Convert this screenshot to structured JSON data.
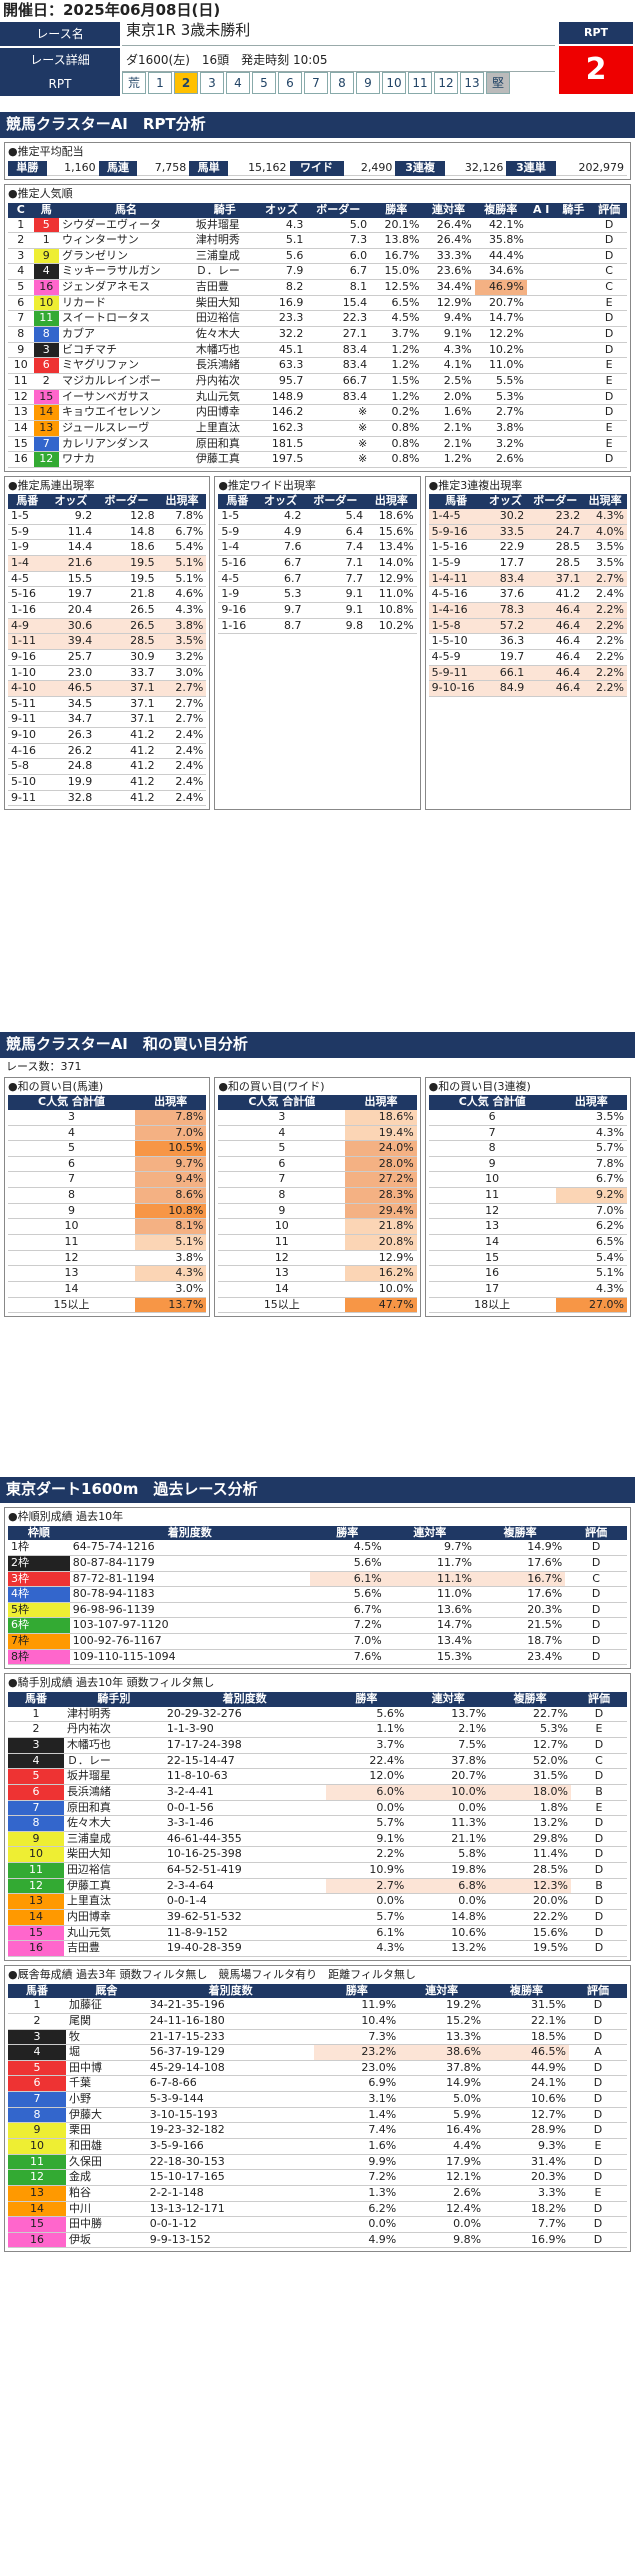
{
  "header": {
    "date_label": "開催日：2025年06月08日(日)"
  },
  "race": {
    "name_label": "レース名",
    "name": "東京1R 3歳未勝利",
    "detail_label": "レース詳細",
    "detail": "ダ1600(左)　16頭　発走時刻 10:05",
    "rpt_label": "RPT",
    "rpt_head": "RPT",
    "rpt_value": "2",
    "rpt_cells": [
      "荒",
      "1",
      "2",
      "3",
      "4",
      "5",
      "6",
      "7",
      "8",
      "9",
      "10",
      "11",
      "12",
      "13",
      "堅"
    ]
  },
  "section1": {
    "title": "競馬クラスターAI　RPT分析"
  },
  "payout": {
    "title": "●推定平均配当",
    "items": [
      [
        "単勝",
        "1,160"
      ],
      [
        "馬連",
        "7,758"
      ],
      [
        "馬単",
        "15,162"
      ],
      [
        "ワイド",
        "2,490"
      ],
      [
        "3連複",
        "32,126"
      ],
      [
        "3連単",
        "202,979"
      ]
    ]
  },
  "popularity": {
    "title": "●推定人気順",
    "headers": [
      "C",
      "馬",
      "馬名",
      "騎手",
      "オッズ",
      "ボーダー",
      "勝率",
      "連対率",
      "複勝率",
      "A I",
      "騎手",
      "評価"
    ],
    "rows": [
      [
        "1",
        "5",
        "シウダーエヴィータ",
        "坂井瑠星",
        "4.3",
        "5.0",
        "20.1%",
        "26.4%",
        "42.1%",
        "",
        "",
        "D"
      ],
      [
        "2",
        "1",
        "ウィンターサン",
        "津村明秀",
        "5.1",
        "7.3",
        "13.8%",
        "26.4%",
        "35.8%",
        "",
        "",
        "D"
      ],
      [
        "3",
        "9",
        "グランゼリン",
        "三浦皇成",
        "5.6",
        "6.0",
        "16.7%",
        "33.3%",
        "44.4%",
        "",
        "",
        "D"
      ],
      [
        "4",
        "4",
        "ミッキーラサルガン",
        "Ｄ．レー",
        "7.9",
        "6.7",
        "15.0%",
        "23.6%",
        "34.6%",
        "",
        "",
        "C"
      ],
      [
        "5",
        "16",
        "ジェンダアネモス",
        "吉田豊",
        "8.2",
        "8.1",
        "12.5%",
        "34.4%",
        "46.9%",
        "",
        "",
        "C"
      ],
      [
        "6",
        "10",
        "リカード",
        "柴田大知",
        "16.9",
        "15.4",
        "6.5%",
        "12.9%",
        "20.7%",
        "",
        "",
        "E"
      ],
      [
        "7",
        "11",
        "スイートロータス",
        "田辺裕信",
        "23.3",
        "22.3",
        "4.5%",
        "9.4%",
        "14.7%",
        "",
        "",
        "D"
      ],
      [
        "8",
        "8",
        "カブア",
        "佐々木大",
        "32.2",
        "27.1",
        "3.7%",
        "9.1%",
        "12.2%",
        "",
        "",
        "D"
      ],
      [
        "9",
        "3",
        "ビコチマチ",
        "木幡巧也",
        "45.1",
        "83.4",
        "1.2%",
        "4.3%",
        "10.2%",
        "",
        "",
        "D"
      ],
      [
        "10",
        "6",
        "ミヤグリファン",
        "長浜鴻緒",
        "63.3",
        "83.4",
        "1.2%",
        "4.1%",
        "11.0%",
        "",
        "",
        "E"
      ],
      [
        "11",
        "2",
        "マジカルレインボー",
        "丹内祐次",
        "95.7",
        "66.7",
        "1.5%",
        "2.5%",
        "5.5%",
        "",
        "",
        "E"
      ],
      [
        "12",
        "15",
        "イーサンベガサス",
        "丸山元気",
        "148.9",
        "83.4",
        "1.2%",
        "2.0%",
        "5.3%",
        "",
        "",
        "D"
      ],
      [
        "13",
        "14",
        "キョウエイセレソン",
        "内田博幸",
        "146.2",
        "※",
        "0.2%",
        "1.6%",
        "2.7%",
        "",
        "",
        "D"
      ],
      [
        "14",
        "13",
        "ジュールスレーヴ",
        "上里直汰",
        "162.3",
        "※",
        "0.8%",
        "2.1%",
        "3.8%",
        "",
        "",
        "E"
      ],
      [
        "15",
        "7",
        "カレリアンダンス",
        "原田和真",
        "181.5",
        "※",
        "0.8%",
        "2.1%",
        "3.2%",
        "",
        "",
        "E"
      ],
      [
        "16",
        "12",
        "ワナカ",
        "伊藤工真",
        "197.5",
        "※",
        "0.8%",
        "1.2%",
        "2.6%",
        "",
        "",
        "D"
      ]
    ]
  },
  "umaren": {
    "title": "●推定馬連出現率",
    "headers": [
      "馬番",
      "オッズ",
      "ボーダー",
      "出現率"
    ],
    "rows": [
      [
        "1-5",
        "9.2",
        "12.8",
        "7.8%"
      ],
      [
        "5-9",
        "11.4",
        "14.8",
        "6.7%"
      ],
      [
        "1-9",
        "14.4",
        "18.6",
        "5.4%"
      ],
      [
        "1-4",
        "21.6",
        "19.5",
        "5.1%"
      ],
      [
        "4-5",
        "15.5",
        "19.5",
        "5.1%"
      ],
      [
        "5-16",
        "19.7",
        "21.8",
        "4.6%"
      ],
      [
        "1-16",
        "20.4",
        "26.5",
        "4.3%"
      ],
      [
        "4-9",
        "30.6",
        "26.5",
        "3.8%"
      ],
      [
        "1-11",
        "39.4",
        "28.5",
        "3.5%"
      ],
      [
        "9-16",
        "25.7",
        "30.9",
        "3.2%"
      ],
      [
        "1-10",
        "23.0",
        "33.7",
        "3.0%"
      ],
      [
        "4-10",
        "46.5",
        "37.1",
        "2.7%"
      ],
      [
        "5-11",
        "34.5",
        "37.1",
        "2.7%"
      ],
      [
        "9-11",
        "34.7",
        "37.1",
        "2.7%"
      ],
      [
        "9-10",
        "26.3",
        "41.2",
        "2.4%"
      ],
      [
        "4-16",
        "26.2",
        "41.2",
        "2.4%"
      ],
      [
        "5-8",
        "24.8",
        "41.2",
        "2.4%"
      ],
      [
        "5-10",
        "19.9",
        "41.2",
        "2.4%"
      ],
      [
        "9-11",
        "32.8",
        "41.2",
        "2.4%"
      ]
    ]
  },
  "wide": {
    "title": "●推定ワイド出現率",
    "headers": [
      "馬番",
      "オッズ",
      "ボーダー",
      "出現率"
    ],
    "rows": [
      [
        "1-5",
        "4.2",
        "5.4",
        "18.6%"
      ],
      [
        "5-9",
        "4.9",
        "6.4",
        "15.6%"
      ],
      [
        "1-4",
        "7.6",
        "7.4",
        "13.4%"
      ],
      [
        "5-16",
        "6.7",
        "7.1",
        "14.0%"
      ],
      [
        "4-5",
        "6.7",
        "7.7",
        "12.9%"
      ],
      [
        "1-9",
        "5.3",
        "9.1",
        "11.0%"
      ],
      [
        "9-16",
        "9.7",
        "9.1",
        "10.8%"
      ],
      [
        "1-16",
        "8.7",
        "9.8",
        "10.2%"
      ]
    ]
  },
  "sanrenpuku": {
    "title": "●推定3連複出現率",
    "headers": [
      "馬番",
      "オッズ",
      "ボーダー",
      "出現率"
    ],
    "rows": [
      [
        "1-4-5",
        "30.2",
        "23.2",
        "4.3%"
      ],
      [
        "5-9-16",
        "33.5",
        "24.7",
        "4.0%"
      ],
      [
        "1-5-16",
        "22.9",
        "28.5",
        "3.5%"
      ],
      [
        "1-5-9",
        "17.7",
        "28.5",
        "3.5%"
      ],
      [
        "1-4-11",
        "83.4",
        "37.1",
        "2.7%"
      ],
      [
        "4-5-16",
        "37.6",
        "41.2",
        "2.4%"
      ],
      [
        "1-4-16",
        "78.3",
        "46.4",
        "2.2%"
      ],
      [
        "1-5-8",
        "57.2",
        "46.4",
        "2.2%"
      ],
      [
        "1-5-10",
        "36.3",
        "46.4",
        "2.2%"
      ],
      [
        "4-5-9",
        "19.7",
        "46.4",
        "2.2%"
      ],
      [
        "5-9-11",
        "66.1",
        "46.4",
        "2.2%"
      ],
      [
        "9-10-16",
        "84.9",
        "46.4",
        "2.2%"
      ]
    ]
  },
  "section2": {
    "title": "競馬クラスターAI　和の買い目分析",
    "race_count": "レース数：371"
  },
  "sum_umaren": {
    "title": "●和の買い目(馬連)",
    "h1": "C人気\n合計値",
    "h2": "出現率",
    "rows": [
      [
        "3",
        "7.8%"
      ],
      [
        "4",
        "7.0%"
      ],
      [
        "5",
        "10.5%"
      ],
      [
        "6",
        "9.7%"
      ],
      [
        "7",
        "9.4%"
      ],
      [
        "8",
        "8.6%"
      ],
      [
        "9",
        "10.8%"
      ],
      [
        "10",
        "8.1%"
      ],
      [
        "11",
        "5.1%"
      ],
      [
        "12",
        "3.8%"
      ],
      [
        "13",
        "4.3%"
      ],
      [
        "14",
        "3.0%"
      ],
      [
        "15以上",
        "13.7%"
      ]
    ]
  },
  "sum_wide": {
    "title": "●和の買い目(ワイド)",
    "h1": "C人気\n合計値",
    "h2": "出現率",
    "rows": [
      [
        "3",
        "18.6%"
      ],
      [
        "4",
        "19.4%"
      ],
      [
        "5",
        "24.0%"
      ],
      [
        "6",
        "28.0%"
      ],
      [
        "7",
        "27.2%"
      ],
      [
        "8",
        "28.3%"
      ],
      [
        "9",
        "29.4%"
      ],
      [
        "10",
        "21.8%"
      ],
      [
        "11",
        "20.8%"
      ],
      [
        "12",
        "12.9%"
      ],
      [
        "13",
        "16.2%"
      ],
      [
        "14",
        "10.0%"
      ],
      [
        "15以上",
        "47.7%"
      ]
    ]
  },
  "sum_sanren": {
    "title": "●和の買い目(3連複)",
    "h1": "C人気\n合計値",
    "h2": "出現率",
    "rows": [
      [
        "6",
        "3.5%"
      ],
      [
        "7",
        "4.3%"
      ],
      [
        "8",
        "5.7%"
      ],
      [
        "9",
        "7.8%"
      ],
      [
        "10",
        "6.7%"
      ],
      [
        "11",
        "9.2%"
      ],
      [
        "12",
        "7.0%"
      ],
      [
        "13",
        "6.2%"
      ],
      [
        "14",
        "6.5%"
      ],
      [
        "15",
        "5.4%"
      ],
      [
        "16",
        "5.1%"
      ],
      [
        "17",
        "4.3%"
      ],
      [
        "18以上",
        "27.0%"
      ]
    ]
  },
  "section3": {
    "title": "東京ダート1600m　過去レース分析"
  },
  "frame": {
    "title": "●枠順別成績 過去10年",
    "headers": [
      "枠順",
      "着別度数",
      "勝率",
      "連対率",
      "複勝率",
      "評価"
    ],
    "rows": [
      [
        "1枠",
        "64-75-74-1216",
        "4.5%",
        "9.7%",
        "14.9%",
        "D"
      ],
      [
        "2枠",
        "80-87-84-1179",
        "5.6%",
        "11.7%",
        "17.6%",
        "D"
      ],
      [
        "3枠",
        "87-72-81-1194",
        "6.1%",
        "11.1%",
        "16.7%",
        "C"
      ],
      [
        "4枠",
        "80-78-94-1183",
        "5.6%",
        "11.0%",
        "17.6%",
        "D"
      ],
      [
        "5枠",
        "96-98-96-1139",
        "6.7%",
        "13.6%",
        "20.3%",
        "D"
      ],
      [
        "6枠",
        "103-107-97-1120",
        "7.2%",
        "14.7%",
        "21.5%",
        "D"
      ],
      [
        "7枠",
        "100-92-76-1167",
        "7.0%",
        "13.4%",
        "18.7%",
        "D"
      ],
      [
        "8枠",
        "109-110-115-1094",
        "7.6%",
        "15.3%",
        "23.4%",
        "D"
      ]
    ]
  },
  "jockey": {
    "title": "●騎手別成績 過去10年 頭数フィルタ無し",
    "headers": [
      "馬番",
      "騎手別",
      "着別度数",
      "勝率",
      "連対率",
      "複勝率",
      "評価"
    ],
    "rows": [
      [
        "1",
        "津村明秀",
        "20-29-32-276",
        "5.6%",
        "13.7%",
        "22.7%",
        "D"
      ],
      [
        "2",
        "丹内祐次",
        "1-1-3-90",
        "1.1%",
        "2.1%",
        "5.3%",
        "E"
      ],
      [
        "3",
        "木幡巧也",
        "17-17-24-398",
        "3.7%",
        "7.5%",
        "12.7%",
        "D"
      ],
      [
        "4",
        "Ｄ．レー",
        "22-15-14-47",
        "22.4%",
        "37.8%",
        "52.0%",
        "C"
      ],
      [
        "5",
        "坂井瑠星",
        "11-8-10-63",
        "12.0%",
        "20.7%",
        "31.5%",
        "D"
      ],
      [
        "6",
        "長浜鴻緒",
        "3-2-4-41",
        "6.0%",
        "10.0%",
        "18.0%",
        "B"
      ],
      [
        "7",
        "原田和真",
        "0-0-1-56",
        "0.0%",
        "0.0%",
        "1.8%",
        "E"
      ],
      [
        "8",
        "佐々木大",
        "3-3-1-46",
        "5.7%",
        "11.3%",
        "13.2%",
        "D"
      ],
      [
        "9",
        "三浦皇成",
        "46-61-44-355",
        "9.1%",
        "21.1%",
        "29.8%",
        "D"
      ],
      [
        "10",
        "柴田大知",
        "10-16-25-398",
        "2.2%",
        "5.8%",
        "11.4%",
        "D"
      ],
      [
        "11",
        "田辺裕信",
        "64-52-51-419",
        "10.9%",
        "19.8%",
        "28.5%",
        "D"
      ],
      [
        "12",
        "伊藤工真",
        "2-3-4-64",
        "2.7%",
        "6.8%",
        "12.3%",
        "B"
      ],
      [
        "13",
        "上里直汰",
        "0-0-1-4",
        "0.0%",
        "0.0%",
        "20.0%",
        "D"
      ],
      [
        "14",
        "内田博幸",
        "39-62-51-532",
        "5.7%",
        "14.8%",
        "22.2%",
        "D"
      ],
      [
        "15",
        "丸山元気",
        "11-8-9-152",
        "6.1%",
        "10.6%",
        "15.6%",
        "D"
      ],
      [
        "16",
        "吉田豊",
        "19-40-28-359",
        "4.3%",
        "13.2%",
        "19.5%",
        "D"
      ]
    ]
  },
  "sire": {
    "title": "●厩舎毎成績 過去3年 頭数フィルタ無し　競馬場フィルタ有り　距離フィルタ無し",
    "headers": [
      "馬番",
      "厩舎",
      "着別度数",
      "勝率",
      "連対率",
      "複勝率",
      "評価"
    ],
    "rows": [
      [
        "1",
        "加藤征",
        "34-21-35-196",
        "11.9%",
        "19.2%",
        "31.5%",
        "D"
      ],
      [
        "2",
        "尾関",
        "24-11-16-180",
        "10.4%",
        "15.2%",
        "22.1%",
        "D"
      ],
      [
        "3",
        "牧",
        "21-17-15-233",
        "7.3%",
        "13.3%",
        "18.5%",
        "D"
      ],
      [
        "4",
        "堀",
        "56-37-19-129",
        "23.2%",
        "38.6%",
        "46.5%",
        "A"
      ],
      [
        "5",
        "田中博",
        "45-29-14-108",
        "23.0%",
        "37.8%",
        "44.9%",
        "D"
      ],
      [
        "6",
        "千葉",
        "6-7-8-66",
        "6.9%",
        "14.9%",
        "24.1%",
        "D"
      ],
      [
        "7",
        "小野",
        "5-3-9-144",
        "3.1%",
        "5.0%",
        "10.6%",
        "D"
      ],
      [
        "8",
        "伊藤大",
        "3-10-15-193",
        "1.4%",
        "5.9%",
        "12.7%",
        "D"
      ],
      [
        "9",
        "栗田",
        "19-23-32-182",
        "7.4%",
        "16.4%",
        "28.9%",
        "D"
      ],
      [
        "10",
        "和田雄",
        "3-5-9-166",
        "1.6%",
        "4.4%",
        "9.3%",
        "E"
      ],
      [
        "11",
        "久保田",
        "22-18-30-153",
        "9.9%",
        "17.9%",
        "31.4%",
        "D"
      ],
      [
        "12",
        "金成",
        "15-10-17-165",
        "7.2%",
        "12.1%",
        "20.3%",
        "D"
      ],
      [
        "13",
        "粕谷",
        "2-2-1-148",
        "1.3%",
        "2.6%",
        "3.3%",
        "E"
      ],
      [
        "14",
        "中川",
        "13-13-12-171",
        "6.2%",
        "12.4%",
        "18.2%",
        "D"
      ],
      [
        "15",
        "田中勝",
        "0-0-1-12",
        "0.0%",
        "0.0%",
        "7.7%",
        "D"
      ],
      [
        "16",
        "伊坂",
        "9-9-13-152",
        "4.9%",
        "9.8%",
        "16.9%",
        "D"
      ]
    ]
  },
  "colors": {
    "frame": [
      "#fff",
      "#222",
      "#e33",
      "#36c",
      "#ee3",
      "#3a3",
      "#f90",
      "#f6c"
    ],
    "frame_text": [
      "#222",
      "#fff",
      "#fff",
      "#fff",
      "#222",
      "#fff",
      "#222",
      "#222"
    ]
  }
}
